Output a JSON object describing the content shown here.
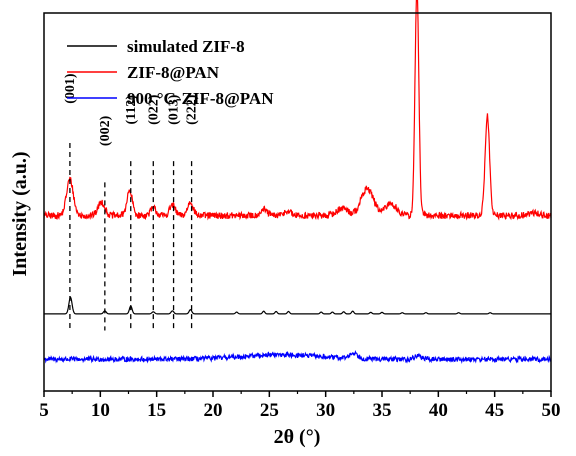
{
  "chart_data": {
    "type": "line",
    "xlabel": "2θ (°)",
    "ylabel": "Intensity (a.u.)",
    "xlim": [
      5,
      50
    ],
    "xticks": [
      5,
      10,
      15,
      20,
      25,
      30,
      35,
      40,
      45,
      50
    ],
    "yticks": "none",
    "grid": false,
    "legend": {
      "placement": "top-left",
      "entries": [
        {
          "label": "simulated ZIF-8",
          "color": "#000000"
        },
        {
          "label": "ZIF-8@PAN",
          "color": "#ff0000"
        },
        {
          "label": "900 °C-ZIF-8@PAN",
          "color": "#0000ff"
        }
      ]
    },
    "series": [
      {
        "name": "simulated ZIF-8",
        "color": "#000000",
        "baseline": 0.5,
        "noise": 0.0,
        "peaks": [
          {
            "x": 7.35,
            "height": 5.5,
            "width": 0.14
          },
          {
            "x": 10.4,
            "height": 1.0,
            "width": 0.12
          },
          {
            "x": 12.7,
            "height": 2.6,
            "width": 0.12
          },
          {
            "x": 14.7,
            "height": 0.7,
            "width": 0.12
          },
          {
            "x": 16.4,
            "height": 1.0,
            "width": 0.12
          },
          {
            "x": 18.0,
            "height": 1.4,
            "width": 0.12
          },
          {
            "x": 22.1,
            "height": 0.6,
            "width": 0.1
          },
          {
            "x": 24.5,
            "height": 0.9,
            "width": 0.1
          },
          {
            "x": 25.6,
            "height": 0.8,
            "width": 0.1
          },
          {
            "x": 26.7,
            "height": 0.8,
            "width": 0.1
          },
          {
            "x": 29.6,
            "height": 0.6,
            "width": 0.1
          },
          {
            "x": 30.6,
            "height": 0.6,
            "width": 0.1
          },
          {
            "x": 31.6,
            "height": 0.7,
            "width": 0.1
          },
          {
            "x": 32.4,
            "height": 0.9,
            "width": 0.1
          },
          {
            "x": 34.0,
            "height": 0.5,
            "width": 0.1
          },
          {
            "x": 35.0,
            "height": 0.5,
            "width": 0.1
          },
          {
            "x": 36.8,
            "height": 0.4,
            "width": 0.1
          },
          {
            "x": 38.9,
            "height": 0.4,
            "width": 0.1
          },
          {
            "x": 41.8,
            "height": 0.4,
            "width": 0.1
          },
          {
            "x": 44.6,
            "height": 0.4,
            "width": 0.1
          }
        ]
      },
      {
        "name": "ZIF-8@PAN",
        "color": "#ff0000",
        "baseline": 33.0,
        "noise": 1.1,
        "peaks": [
          {
            "x": 7.3,
            "height": 12.0,
            "width": 0.3
          },
          {
            "x": 10.1,
            "height": 4.5,
            "width": 0.3
          },
          {
            "x": 12.6,
            "height": 8.0,
            "width": 0.25
          },
          {
            "x": 14.7,
            "height": 2.5,
            "width": 0.25
          },
          {
            "x": 16.4,
            "height": 3.5,
            "width": 0.25
          },
          {
            "x": 18.0,
            "height": 4.5,
            "width": 0.25
          },
          {
            "x": 24.5,
            "height": 2.0,
            "width": 0.3
          },
          {
            "x": 26.6,
            "height": 1.5,
            "width": 0.3
          },
          {
            "x": 31.5,
            "height": 2.5,
            "width": 0.5
          },
          {
            "x": 33.7,
            "height": 9.0,
            "width": 0.55
          },
          {
            "x": 35.8,
            "height": 4.0,
            "width": 0.5
          },
          {
            "x": 38.1,
            "height": 75.0,
            "width": 0.17
          },
          {
            "x": 44.35,
            "height": 33.0,
            "width": 0.2
          },
          {
            "x": 48.5,
            "height": 1.0,
            "width": 0.4
          }
        ]
      },
      {
        "name": "900 °C-ZIF-8@PAN",
        "color": "#0000ff",
        "baseline": -14.5,
        "noise": 0.8,
        "peaks": [
          {
            "x": 26.0,
            "height": 1.5,
            "width": 3.5
          },
          {
            "x": 32.5,
            "height": 1.8,
            "width": 0.35
          },
          {
            "x": 38.2,
            "height": 1.2,
            "width": 0.3
          }
        ]
      }
    ],
    "annotations": [
      {
        "label": "(001)",
        "x": 7.3,
        "text_y": 75,
        "line_top": 57,
        "line_bottom": -5
      },
      {
        "label": "(002)",
        "x": 10.4,
        "text_y": 61,
        "line_top": 44,
        "line_bottom": -5
      },
      {
        "label": "(112)",
        "x": 12.7,
        "text_y": 68,
        "line_top": 51,
        "line_bottom": -5
      },
      {
        "label": "(022)",
        "x": 14.7,
        "text_y": 68,
        "line_top": 51,
        "line_bottom": -5
      },
      {
        "label": "(013)",
        "x": 16.5,
        "text_y": 68,
        "line_top": 51,
        "line_bottom": -5
      },
      {
        "label": "(222)",
        "x": 18.1,
        "text_y": 68,
        "line_top": 51,
        "line_bottom": -5
      }
    ],
    "ylim": [
      -25,
      100
    ]
  }
}
